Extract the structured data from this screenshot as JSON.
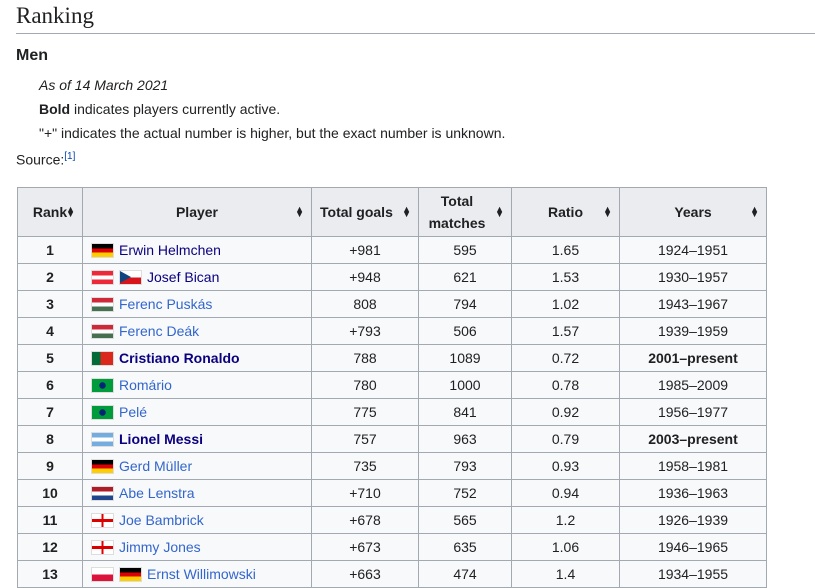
{
  "section_title": "Ranking",
  "subsection_title": "Men",
  "notes": {
    "as_of": "As of 14 March 2021",
    "bold_word": "Bold",
    "bold_rest": " indicates players currently active.",
    "plus": "\"+\" indicates the actual number is higher, but the exact number is unknown."
  },
  "source": {
    "label": "Source:",
    "ref": "[1]"
  },
  "table": {
    "headers": [
      "Rank",
      "Player",
      "Total goals",
      "Total matches",
      "Ratio",
      "Years"
    ],
    "rows": [
      {
        "rank": "1",
        "flags": [
          "de"
        ],
        "player": "Erwin Helmchen",
        "goals": "+981",
        "matches": "595",
        "ratio": "1.65",
        "years": "1924–1951",
        "active": false,
        "visited": true
      },
      {
        "rank": "2",
        "flags": [
          "at",
          "cz"
        ],
        "player": "Josef Bican",
        "goals": "+948",
        "matches": "621",
        "ratio": "1.53",
        "years": "1930–1957",
        "active": false,
        "visited": true
      },
      {
        "rank": "3",
        "flags": [
          "hu"
        ],
        "player": "Ferenc Puskás",
        "goals": "808",
        "matches": "794",
        "ratio": "1.02",
        "years": "1943–1967",
        "active": false,
        "visited": false
      },
      {
        "rank": "4",
        "flags": [
          "hu"
        ],
        "player": "Ferenc Deák",
        "goals": "+793",
        "matches": "506",
        "ratio": "1.57",
        "years": "1939–1959",
        "active": false,
        "visited": false
      },
      {
        "rank": "5",
        "flags": [
          "pt"
        ],
        "player": "Cristiano Ronaldo",
        "goals": "788",
        "matches": "1089",
        "ratio": "0.72",
        "years": "2001–present",
        "active": true,
        "visited": true
      },
      {
        "rank": "6",
        "flags": [
          "br"
        ],
        "player": "Romário",
        "goals": "780",
        "matches": "1000",
        "ratio": "0.78",
        "years": "1985–2009",
        "active": false,
        "visited": false
      },
      {
        "rank": "7",
        "flags": [
          "br"
        ],
        "player": "Pelé",
        "goals": "775",
        "matches": "841",
        "ratio": "0.92",
        "years": "1956–1977",
        "active": false,
        "visited": false
      },
      {
        "rank": "8",
        "flags": [
          "ar"
        ],
        "player": "Lionel Messi",
        "goals": "757",
        "matches": "963",
        "ratio": "0.79",
        "years": "2003–present",
        "active": true,
        "visited": true
      },
      {
        "rank": "9",
        "flags": [
          "de"
        ],
        "player": "Gerd Müller",
        "goals": "735",
        "matches": "793",
        "ratio": "0.93",
        "years": "1958–1981",
        "active": false,
        "visited": false
      },
      {
        "rank": "10",
        "flags": [
          "nl"
        ],
        "player": "Abe Lenstra",
        "goals": "+710",
        "matches": "752",
        "ratio": "0.94",
        "years": "1936–1963",
        "active": false,
        "visited": false
      },
      {
        "rank": "11",
        "flags": [
          "nir"
        ],
        "player": "Joe Bambrick",
        "goals": "+678",
        "matches": "565",
        "ratio": "1.2",
        "years": "1926–1939",
        "active": false,
        "visited": false
      },
      {
        "rank": "12",
        "flags": [
          "nir"
        ],
        "player": "Jimmy Jones",
        "goals": "+673",
        "matches": "635",
        "ratio": "1.06",
        "years": "1946–1965",
        "active": false,
        "visited": false
      },
      {
        "rank": "13",
        "flags": [
          "pl",
          "de"
        ],
        "player": "Ernst Willimowski",
        "goals": "+663",
        "matches": "474",
        "ratio": "1.4",
        "years": "1934–1955",
        "active": false,
        "visited": false
      }
    ]
  }
}
